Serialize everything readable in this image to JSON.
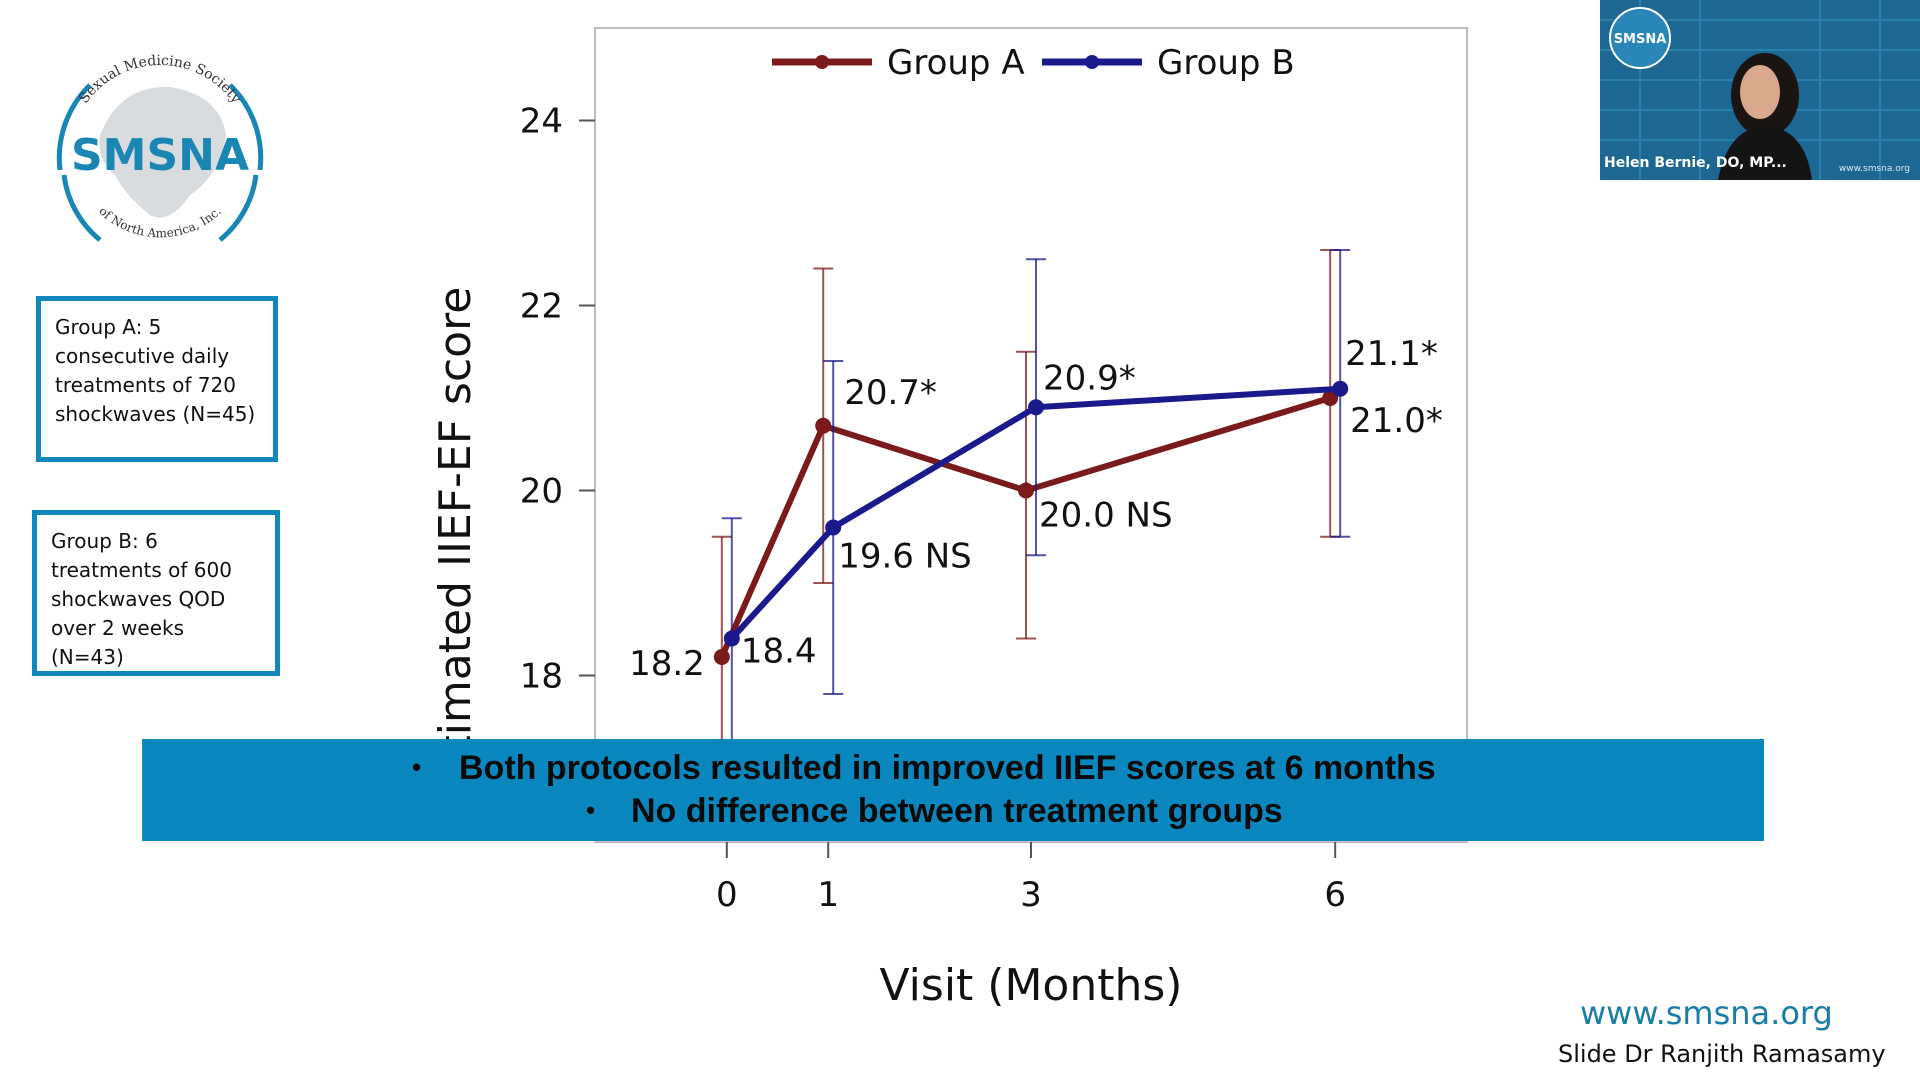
{
  "logo": {
    "name": "SMSNA",
    "arc_top": "Sexual Medicine Society",
    "arc_bottom": "of North America, Inc."
  },
  "notes": {
    "group_a_lines": [
      "Group A: 5",
      "consecutive daily",
      "treatments of 720",
      "shockwaves  (N=45)"
    ],
    "group_b_lines": [
      "Group B: 6",
      "treatments of 600",
      "shockwaves QOD",
      "over 2 weeks (N=43)"
    ]
  },
  "chart_data": {
    "type": "line",
    "xlabel": "Visit (Months)",
    "ylabel": "Estimated IIEF-EF score",
    "x": [
      0,
      1,
      3,
      6
    ],
    "xlim": [
      -1.3,
      7.3
    ],
    "ylim": [
      16.2,
      25.0
    ],
    "yticks": [
      18,
      20,
      22,
      24
    ],
    "xticks": [
      0,
      1,
      3,
      6
    ],
    "legend_position": "top",
    "series": [
      {
        "name": "Group A",
        "color": "#7b1a1a",
        "values": [
          18.2,
          20.7,
          20.0,
          21.0
        ],
        "err_low": [
          16.9,
          19.0,
          18.4,
          19.5
        ],
        "err_high": [
          19.5,
          22.4,
          21.5,
          22.6
        ],
        "labels": [
          "18.2",
          "20.7*",
          "20.0 NS",
          "21.0*"
        ]
      },
      {
        "name": "Group B",
        "color": "#1a1a8c",
        "values": [
          18.4,
          19.6,
          20.9,
          21.1
        ],
        "err_low": [
          17.0,
          17.8,
          19.3,
          19.5
        ],
        "err_high": [
          19.7,
          21.4,
          22.5,
          22.6
        ],
        "labels": [
          "18.4",
          "19.6 NS",
          "20.9*",
          "21.1*"
        ]
      }
    ]
  },
  "banner": {
    "bullet_char": "•",
    "line1": "Both protocols resulted in improved IIEF scores at 6 months",
    "line2": "No difference between treatment groups"
  },
  "video_tile": {
    "badge": "SMSNA",
    "name": "Helen Bernie, DO, MP...",
    "url": "www.smsna.org"
  },
  "footer": {
    "url": "www.smsna.org",
    "credit": "Slide Dr Ranjith Ramasamy"
  },
  "colors": {
    "accent": "#0b87bf",
    "box_border": "#1188bb",
    "group_a": "#7b1a1a",
    "group_b": "#1a1a8c"
  }
}
